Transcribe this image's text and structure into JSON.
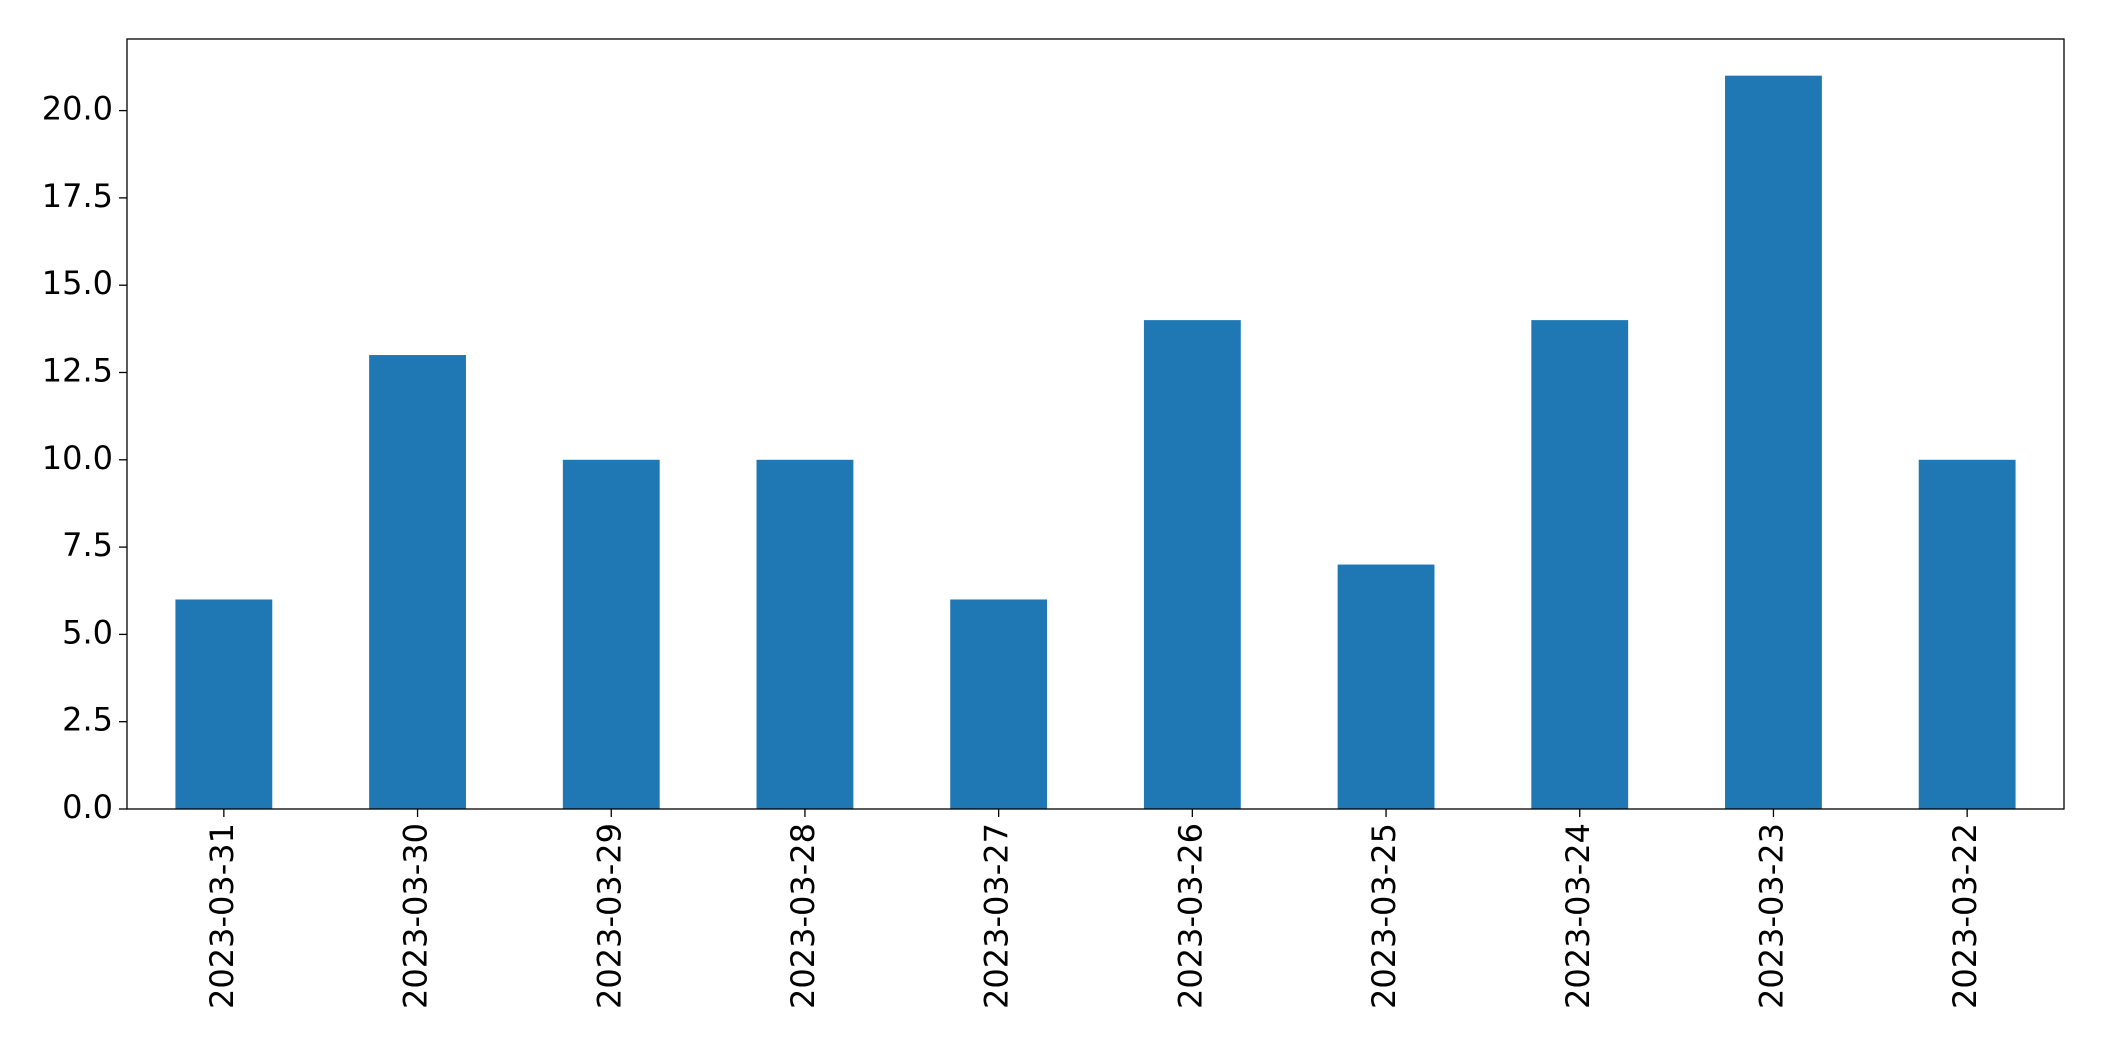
{
  "chart_data": {
    "type": "bar",
    "categories": [
      "2023-03-31",
      "2023-03-30",
      "2023-03-29",
      "2023-03-28",
      "2023-03-27",
      "2023-03-26",
      "2023-03-25",
      "2023-03-24",
      "2023-03-23",
      "2023-03-22"
    ],
    "values": [
      6,
      13,
      10,
      10,
      6,
      14,
      7,
      14,
      21,
      10
    ],
    "color": "#1f77b4",
    "ylim": [
      0,
      22.05
    ],
    "yticks": [
      {
        "value": 0,
        "label": "0.0"
      },
      2.5,
      {
        "value": 5,
        "label": "5.0"
      },
      7.5,
      {
        "value": 10,
        "label": "10.0"
      },
      12.5,
      {
        "value": 15,
        "label": "15.0"
      },
      17.5,
      {
        "value": 20,
        "label": "20.0"
      }
    ],
    "grid": false
  }
}
